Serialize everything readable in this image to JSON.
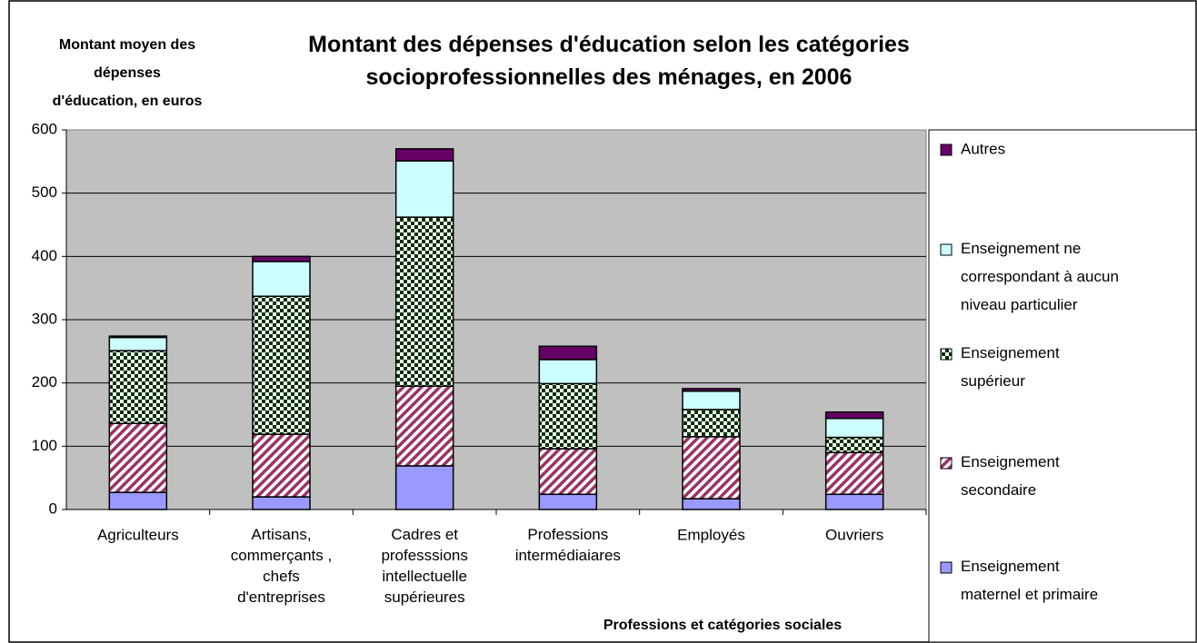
{
  "chart_data": {
    "type": "bar",
    "stacked": true,
    "title": "Montant des dépenses d'éducation selon les catégories\nsocioprofessionnelles des ménages, en 2006",
    "y_label": "Montant moyen des\ndépenses\nd'éducation, en euros",
    "x_label": "Professions et catégories sociales",
    "categories": [
      "Agriculteurs",
      "Artisans,\ncommerçants ,\nchefs\nd'entreprises",
      "Cadres et\nprofesssions\nintellectuelle\nsupérieures",
      "Professions\nintermédiaiares",
      "Employés",
      "Ouvriers"
    ],
    "series": [
      {
        "name": "Enseignement\nmaternel et primaire",
        "color": "#9999ff",
        "pattern": "solid",
        "values": [
          27,
          20,
          69,
          24,
          17,
          24
        ]
      },
      {
        "name": "Enseignement\nsecondaire",
        "color": "#993366",
        "pattern": "hatch",
        "values": [
          109,
          99,
          126,
          72,
          98,
          66
        ]
      },
      {
        "name": "Enseignement\nsupérieur",
        "color": "#003300",
        "pattern": "checker",
        "values": [
          115,
          218,
          267,
          103,
          43,
          24
        ]
      },
      {
        "name": "Enseignement ne\ncorrespondant à aucun\nniveau particulier",
        "color": "#ccffff",
        "pattern": "solid",
        "values": [
          21,
          55,
          89,
          38,
          29,
          30
        ]
      },
      {
        "name": "Autres",
        "color": "#660066",
        "pattern": "solid",
        "values": [
          2,
          8,
          19,
          21,
          4,
          10
        ]
      }
    ],
    "ylim": [
      0,
      600
    ],
    "yticks": [
      0,
      100,
      200,
      300,
      400,
      500,
      600
    ],
    "grid": true,
    "legend": "right"
  }
}
